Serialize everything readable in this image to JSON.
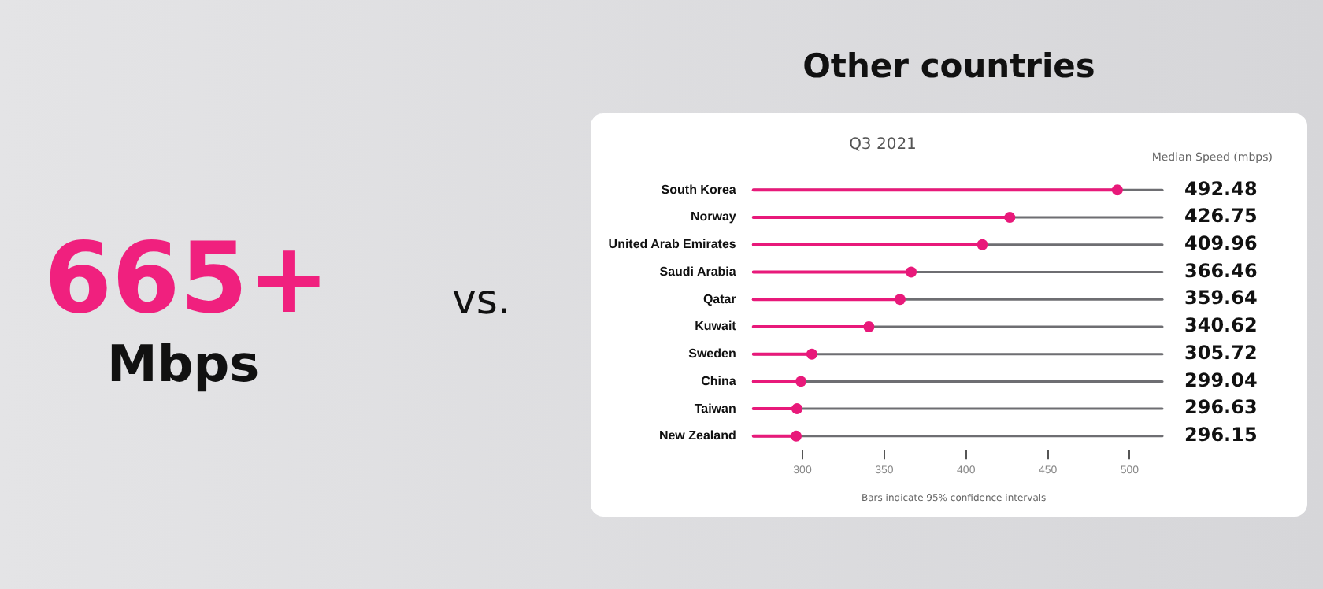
{
  "chart_data": {
    "type": "lollipop",
    "orientation": "horizontal",
    "title": "Other countries",
    "subtitle": "Q3 2021",
    "categories": [
      "South Korea",
      "Norway",
      "United Arab Emirates",
      "Saudi Arabia",
      "Qatar",
      "Kuwait",
      "Sweden",
      "China",
      "Taiwan",
      "New Zealand"
    ],
    "values": [
      492.48,
      426.75,
      409.96,
      366.46,
      359.64,
      340.62,
      305.72,
      299.04,
      296.63,
      296.15
    ],
    "color": "#e8197a",
    "xlim": [
      270,
      520
    ],
    "xticks": [
      300,
      350,
      400,
      450,
      500
    ],
    "data_labels": true,
    "grid": false,
    "legend": false,
    "marker": "circle",
    "annotations": [
      "665+",
      "Mbps",
      "vs.",
      "Median Speed (mbps)",
      "Bars indicate 95% confidence intervals"
    ]
  }
}
